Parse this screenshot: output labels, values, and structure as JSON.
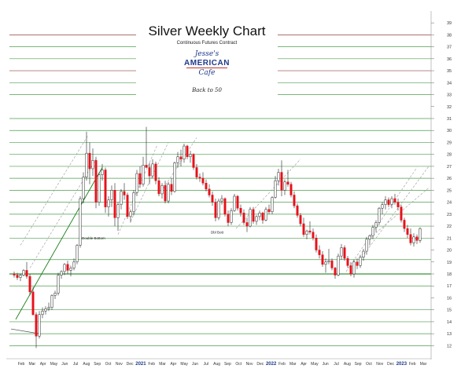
{
  "header": {
    "title": "Silver Weekly Chart",
    "subtitle": "Continuous Futures Contract",
    "logo_top": "Jesse's",
    "logo_main": "AMERICAN",
    "logo_bottom": "Cafe",
    "back_link": "Back to 50"
  },
  "colors": {
    "up_candle": "#ffffff",
    "down_candle": "#e8111a",
    "candle_outline": "#222222",
    "channel_green": "#1a7d1a",
    "level_green": "#2e8b2e",
    "level_dark_red": "#7a1f1f",
    "trend_gray": "#9a9a9a"
  },
  "chart_data": {
    "type": "candlestick",
    "title": "Silver Weekly Chart",
    "subtitle": "Continuous Futures Contract",
    "y_axis": {
      "side": "right",
      "ticks": [
        12,
        13,
        14,
        15,
        16,
        17,
        18,
        19,
        20,
        21,
        22,
        23,
        24,
        25,
        26,
        27,
        28,
        29,
        30,
        31,
        32,
        33,
        34,
        35,
        36,
        37,
        38,
        39
      ],
      "ylim": [
        11.5,
        39.6
      ]
    },
    "x_axis": {
      "labels": [
        "Feb",
        "Mar",
        "Apr",
        "May",
        "Jun",
        "Jul",
        "Aug",
        "Sep",
        "Oct",
        "Nov",
        "Dec",
        "2021",
        "Feb",
        "Mar",
        "Apr",
        "May",
        "Jun",
        "Jul",
        "Aug",
        "Sep",
        "Oct",
        "Nov",
        "Dec",
        "2022",
        "Feb",
        "Mar",
        "Apr",
        "May",
        "Jun",
        "Jul",
        "Aug",
        "Sep",
        "Oct",
        "Nov",
        "Dec",
        "2023",
        "Feb",
        "Mar"
      ],
      "bold_labels": [
        "2021",
        "2022",
        "2023"
      ]
    },
    "annotations": [
      {
        "text": "Double Bottom",
        "week": 26,
        "price": 21.4
      },
      {
        "text": "Dbl Bott",
        "week": 67,
        "price": 21.9
      }
    ],
    "horizontal_levels": [
      {
        "price": 38.0,
        "color": "dark-red"
      },
      {
        "price": 37.0,
        "color": "green"
      },
      {
        "price": 36.0,
        "color": "green"
      },
      {
        "price": 35.0,
        "color": "dark-red"
      },
      {
        "price": 34.0,
        "color": "green"
      },
      {
        "price": 33.0,
        "color": "green"
      },
      {
        "price": 31.0,
        "color": "green"
      },
      {
        "price": 30.0,
        "color": "green"
      },
      {
        "price": 29.0,
        "color": "green"
      },
      {
        "price": 28.0,
        "color": "green"
      },
      {
        "price": 27.0,
        "color": "green"
      },
      {
        "price": 26.0,
        "color": "green"
      },
      {
        "price": 25.0,
        "color": "green"
      },
      {
        "price": 24.0,
        "color": "green"
      },
      {
        "price": 23.0,
        "color": "green"
      },
      {
        "price": 22.0,
        "color": "green"
      },
      {
        "price": 21.0,
        "color": "green"
      },
      {
        "price": 19.2,
        "color": "green"
      },
      {
        "price": 18.0,
        "color": "dark-green"
      },
      {
        "price": 17.0,
        "color": "green"
      },
      {
        "price": 15.0,
        "color": "green"
      },
      {
        "price": 14.0,
        "color": "green"
      },
      {
        "price": 13.0,
        "color": "green"
      },
      {
        "price": 12.0,
        "color": "green"
      }
    ],
    "candles": [
      [
        18.0,
        18.2,
        17.7,
        17.9
      ],
      [
        17.9,
        18.1,
        17.5,
        17.7
      ],
      [
        17.7,
        18.0,
        17.4,
        17.9
      ],
      [
        17.9,
        18.4,
        17.8,
        18.3
      ],
      [
        18.3,
        19.0,
        17.6,
        17.8
      ],
      [
        17.8,
        18.0,
        16.2,
        16.5
      ],
      [
        16.5,
        16.9,
        14.5,
        14.6
      ],
      [
        14.6,
        14.8,
        11.8,
        12.8
      ],
      [
        12.8,
        14.9,
        12.6,
        14.6
      ],
      [
        14.6,
        15.2,
        14.3,
        14.9
      ],
      [
        14.9,
        15.3,
        14.6,
        15.1
      ],
      [
        15.1,
        15.6,
        14.9,
        15.2
      ],
      [
        15.2,
        16.3,
        15.0,
        16.2
      ],
      [
        16.2,
        16.6,
        15.9,
        16.4
      ],
      [
        16.4,
        18.1,
        16.2,
        17.9
      ],
      [
        17.9,
        18.3,
        17.6,
        18.2
      ],
      [
        18.2,
        18.9,
        17.9,
        18.8
      ],
      [
        18.8,
        19.1,
        18.0,
        18.3
      ],
      [
        18.3,
        18.7,
        17.8,
        18.5
      ],
      [
        18.5,
        19.3,
        18.3,
        19.0
      ],
      [
        19.0,
        20.5,
        18.8,
        20.4
      ],
      [
        20.4,
        24.5,
        20.2,
        24.3
      ],
      [
        24.3,
        26.5,
        23.9,
        26.1
      ],
      [
        26.1,
        29.9,
        25.8,
        28.1
      ],
      [
        28.1,
        29.0,
        25.5,
        26.8
      ],
      [
        26.8,
        28.5,
        26.2,
        27.5
      ],
      [
        27.5,
        27.8,
        23.5,
        24.0
      ],
      [
        24.0,
        26.5,
        23.7,
        26.3
      ],
      [
        26.3,
        27.2,
        25.8,
        26.7
      ],
      [
        26.7,
        26.9,
        23.1,
        23.6
      ],
      [
        23.6,
        24.5,
        22.8,
        24.2
      ],
      [
        24.2,
        25.4,
        23.6,
        25.0
      ],
      [
        25.0,
        25.6,
        22.0,
        22.7
      ],
      [
        22.7,
        24.0,
        21.6,
        23.8
      ],
      [
        23.8,
        25.1,
        23.4,
        24.9
      ],
      [
        24.9,
        25.6,
        24.2,
        24.6
      ],
      [
        24.6,
        24.8,
        22.6,
        22.8
      ],
      [
        22.8,
        23.4,
        22.3,
        23.2
      ],
      [
        23.2,
        25.0,
        22.9,
        24.8
      ],
      [
        24.8,
        26.7,
        24.5,
        26.4
      ],
      [
        26.4,
        27.0,
        25.2,
        25.5
      ],
      [
        25.5,
        27.8,
        25.3,
        27.1
      ],
      [
        27.1,
        30.3,
        26.9,
        26.9
      ],
      [
        26.9,
        27.3,
        25.5,
        26.2
      ],
      [
        26.2,
        27.6,
        26.0,
        27.2
      ],
      [
        27.2,
        27.4,
        25.5,
        25.8
      ],
      [
        25.8,
        26.1,
        24.5,
        24.7
      ],
      [
        24.7,
        25.6,
        24.3,
        25.4
      ],
      [
        25.4,
        25.8,
        23.9,
        24.1
      ],
      [
        24.1,
        25.7,
        23.9,
        25.5
      ],
      [
        25.5,
        26.0,
        24.6,
        24.9
      ],
      [
        24.9,
        27.4,
        24.8,
        27.3
      ],
      [
        27.3,
        28.2,
        26.9,
        27.8
      ],
      [
        27.8,
        28.4,
        27.0,
        27.6
      ],
      [
        27.6,
        28.9,
        27.3,
        28.7
      ],
      [
        28.7,
        28.8,
        27.6,
        27.8
      ],
      [
        27.8,
        28.3,
        27.3,
        28.0
      ],
      [
        28.0,
        28.1,
        26.7,
        26.9
      ],
      [
        26.9,
        27.2,
        25.9,
        26.1
      ],
      [
        26.1,
        26.4,
        25.7,
        26.0
      ],
      [
        26.0,
        26.5,
        25.4,
        25.6
      ],
      [
        25.6,
        25.9,
        24.9,
        25.1
      ],
      [
        25.1,
        25.5,
        24.4,
        24.6
      ],
      [
        24.6,
        24.9,
        23.7,
        24.0
      ],
      [
        24.0,
        24.3,
        22.4,
        22.7
      ],
      [
        22.7,
        24.3,
        22.5,
        24.1
      ],
      [
        24.1,
        24.6,
        23.8,
        24.3
      ],
      [
        24.3,
        24.4,
        22.8,
        23.0
      ],
      [
        23.0,
        23.3,
        22.0,
        22.3
      ],
      [
        22.3,
        23.5,
        22.1,
        23.3
      ],
      [
        23.3,
        24.7,
        23.2,
        24.5
      ],
      [
        24.5,
        24.6,
        23.3,
        23.5
      ],
      [
        23.5,
        23.8,
        22.8,
        23.1
      ],
      [
        23.1,
        23.4,
        22.1,
        22.3
      ],
      [
        22.3,
        22.7,
        21.5,
        22.0
      ],
      [
        22.0,
        23.6,
        21.9,
        23.4
      ],
      [
        23.4,
        23.6,
        22.2,
        22.4
      ],
      [
        22.4,
        22.9,
        22.1,
        22.8
      ],
      [
        22.8,
        23.3,
        22.5,
        23.1
      ],
      [
        23.1,
        23.2,
        22.2,
        22.5
      ],
      [
        22.5,
        23.6,
        22.4,
        23.4
      ],
      [
        23.4,
        23.8,
        23.0,
        23.2
      ],
      [
        23.2,
        24.5,
        23.0,
        24.4
      ],
      [
        24.4,
        26.2,
        24.3,
        25.8
      ],
      [
        25.8,
        26.8,
        25.4,
        26.5
      ],
      [
        26.5,
        27.5,
        24.5,
        25.0
      ],
      [
        25.0,
        25.9,
        24.6,
        25.7
      ],
      [
        25.7,
        26.7,
        25.3,
        25.5
      ],
      [
        25.5,
        25.7,
        24.4,
        24.6
      ],
      [
        24.6,
        24.9,
        23.5,
        23.7
      ],
      [
        23.7,
        23.9,
        22.7,
        22.9
      ],
      [
        22.9,
        23.1,
        22.0,
        22.2
      ],
      [
        22.2,
        22.7,
        21.1,
        21.3
      ],
      [
        21.3,
        21.7,
        20.9,
        21.6
      ],
      [
        21.6,
        22.4,
        21.3,
        21.5
      ],
      [
        21.5,
        21.8,
        20.8,
        21.0
      ],
      [
        21.0,
        21.3,
        19.8,
        20.0
      ],
      [
        20.0,
        20.4,
        19.3,
        19.6
      ],
      [
        19.6,
        19.9,
        18.6,
        18.8
      ],
      [
        18.8,
        19.3,
        18.1,
        19.0
      ],
      [
        19.0,
        20.1,
        18.8,
        19.1
      ],
      [
        19.1,
        19.3,
        18.3,
        18.5
      ],
      [
        18.5,
        18.6,
        17.6,
        17.9
      ],
      [
        17.9,
        19.7,
        17.8,
        19.5
      ],
      [
        19.5,
        20.5,
        19.2,
        20.2
      ],
      [
        20.2,
        20.4,
        19.1,
        19.3
      ],
      [
        19.3,
        19.5,
        18.5,
        18.7
      ],
      [
        18.7,
        19.0,
        17.8,
        18.0
      ],
      [
        18.0,
        19.2,
        17.7,
        19.0
      ],
      [
        19.0,
        19.3,
        18.4,
        18.7
      ],
      [
        18.7,
        19.6,
        18.5,
        19.4
      ],
      [
        19.4,
        20.1,
        19.1,
        19.9
      ],
      [
        19.9,
        21.1,
        19.6,
        20.9
      ],
      [
        20.9,
        21.3,
        20.4,
        21.2
      ],
      [
        21.2,
        22.1,
        20.9,
        21.9
      ],
      [
        21.9,
        22.5,
        21.5,
        22.3
      ],
      [
        22.3,
        23.6,
        22.1,
        23.5
      ],
      [
        23.5,
        24.0,
        23.0,
        23.8
      ],
      [
        23.8,
        24.5,
        23.4,
        24.2
      ],
      [
        24.2,
        24.4,
        23.6,
        23.8
      ],
      [
        23.8,
        24.5,
        23.5,
        24.3
      ],
      [
        24.3,
        24.7,
        23.8,
        24.0
      ],
      [
        24.0,
        24.3,
        23.3,
        23.6
      ],
      [
        23.6,
        23.8,
        22.3,
        22.5
      ],
      [
        22.5,
        22.7,
        21.5,
        21.8
      ],
      [
        21.8,
        22.1,
        21.0,
        21.3
      ],
      [
        21.3,
        21.8,
        20.4,
        20.6
      ],
      [
        20.6,
        21.4,
        20.3,
        21.1
      ],
      [
        21.1,
        21.3,
        20.5,
        20.8
      ],
      [
        20.8,
        21.9,
        20.6,
        21.8
      ]
    ]
  }
}
